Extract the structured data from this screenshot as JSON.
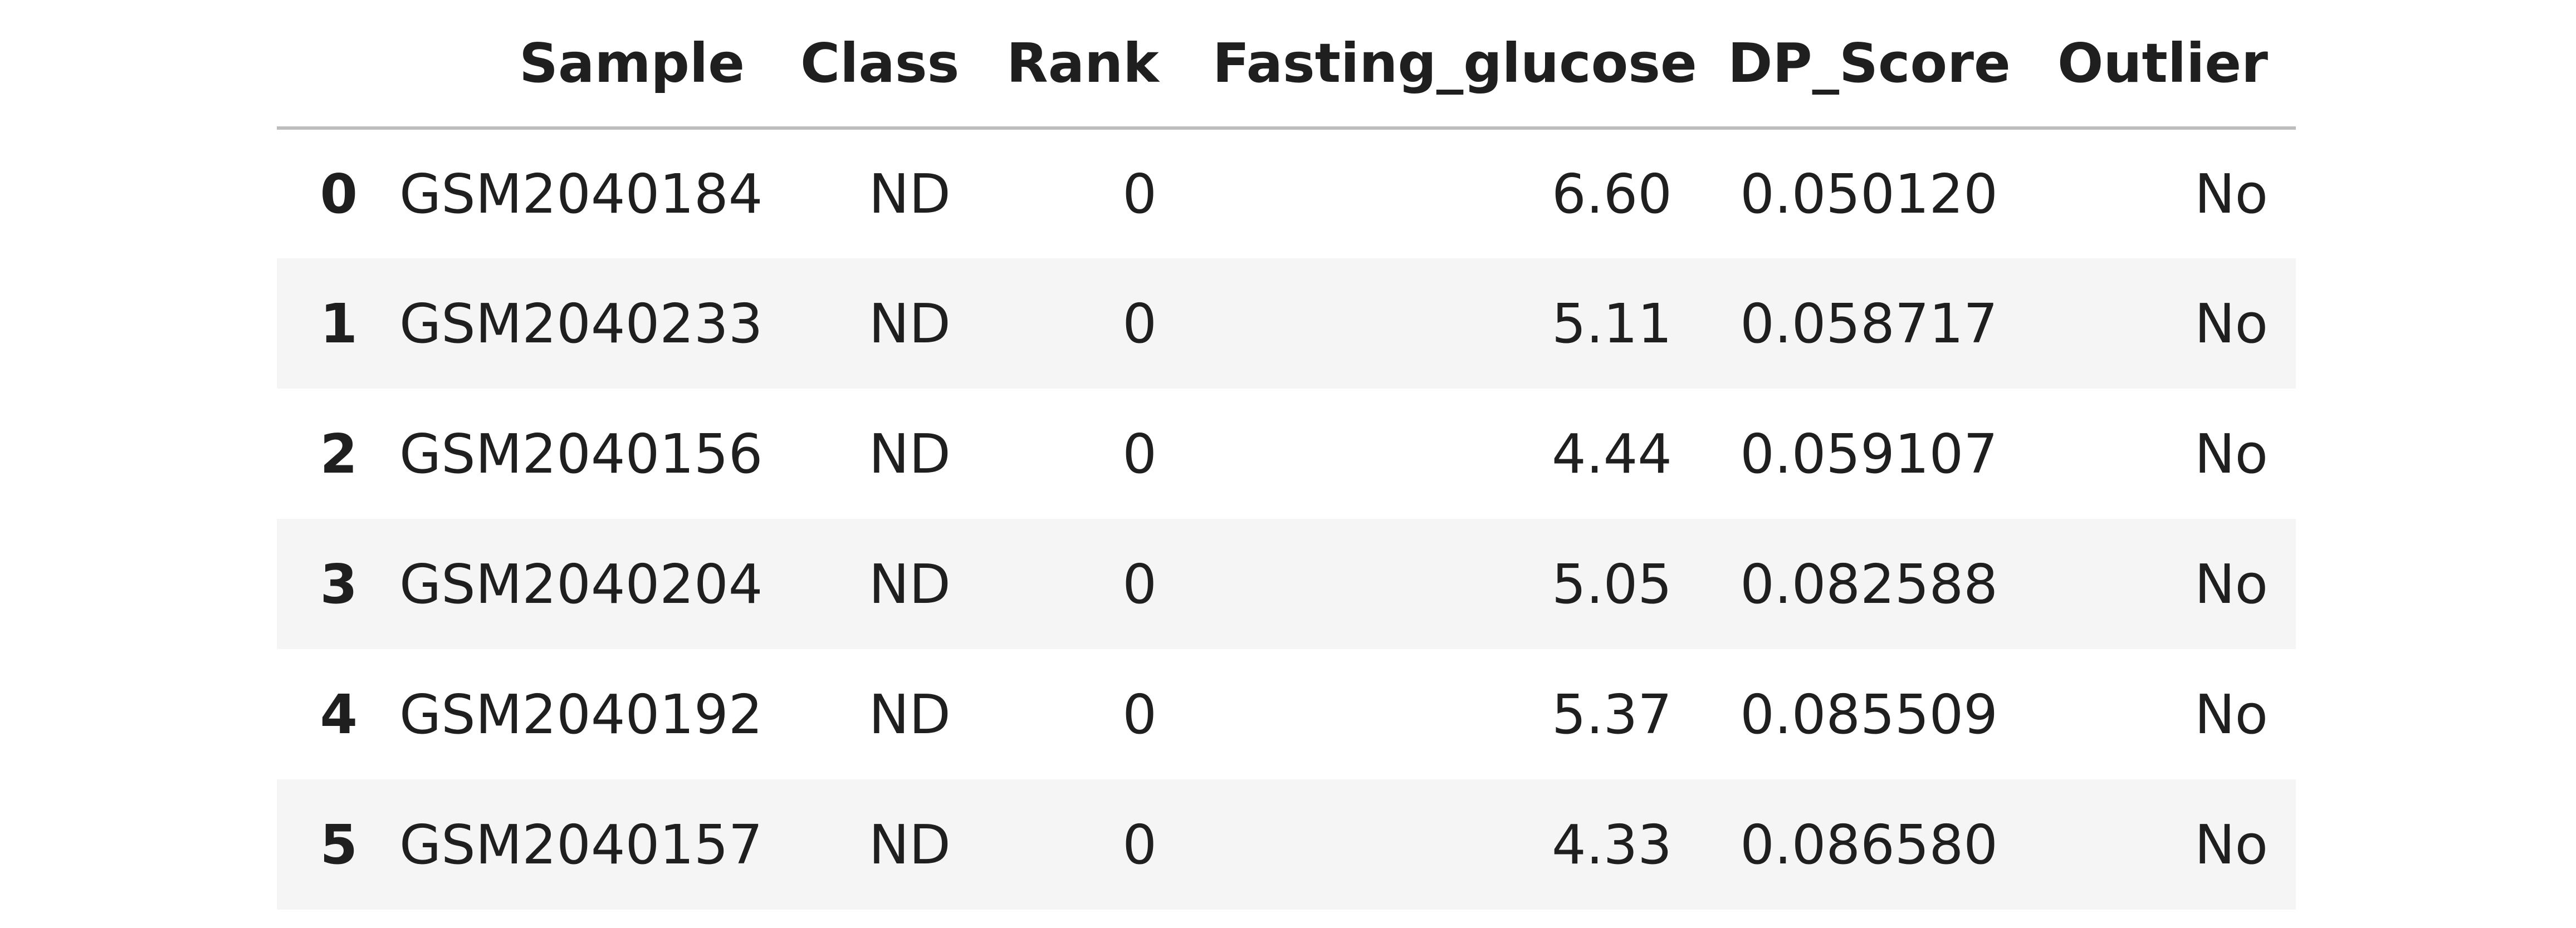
{
  "table": {
    "columns": [
      "",
      "Sample",
      "Class",
      "Rank",
      "Fasting_glucose",
      "DP_Score",
      "Outlier"
    ],
    "rows": [
      {
        "index": "0",
        "sample": "GSM2040184",
        "class": "ND",
        "rank": "0",
        "fasting_glucose": "6.60",
        "dp_score": "0.050120",
        "outlier": "No"
      },
      {
        "index": "1",
        "sample": "GSM2040233",
        "class": "ND",
        "rank": "0",
        "fasting_glucose": "5.11",
        "dp_score": "0.058717",
        "outlier": "No"
      },
      {
        "index": "2",
        "sample": "GSM2040156",
        "class": "ND",
        "rank": "0",
        "fasting_glucose": "4.44",
        "dp_score": "0.059107",
        "outlier": "No"
      },
      {
        "index": "3",
        "sample": "GSM2040204",
        "class": "ND",
        "rank": "0",
        "fasting_glucose": "5.05",
        "dp_score": "0.082588",
        "outlier": "No"
      },
      {
        "index": "4",
        "sample": "GSM2040192",
        "class": "ND",
        "rank": "0",
        "fasting_glucose": "5.37",
        "dp_score": "0.085509",
        "outlier": "No"
      },
      {
        "index": "5",
        "sample": "GSM2040157",
        "class": "ND",
        "rank": "0",
        "fasting_glucose": "4.33",
        "dp_score": "0.086580",
        "outlier": "No"
      }
    ]
  },
  "colors": {
    "stripe": "#f5f5f5",
    "header_rule": "#bdbdbd",
    "text": "#1f1f1f"
  }
}
